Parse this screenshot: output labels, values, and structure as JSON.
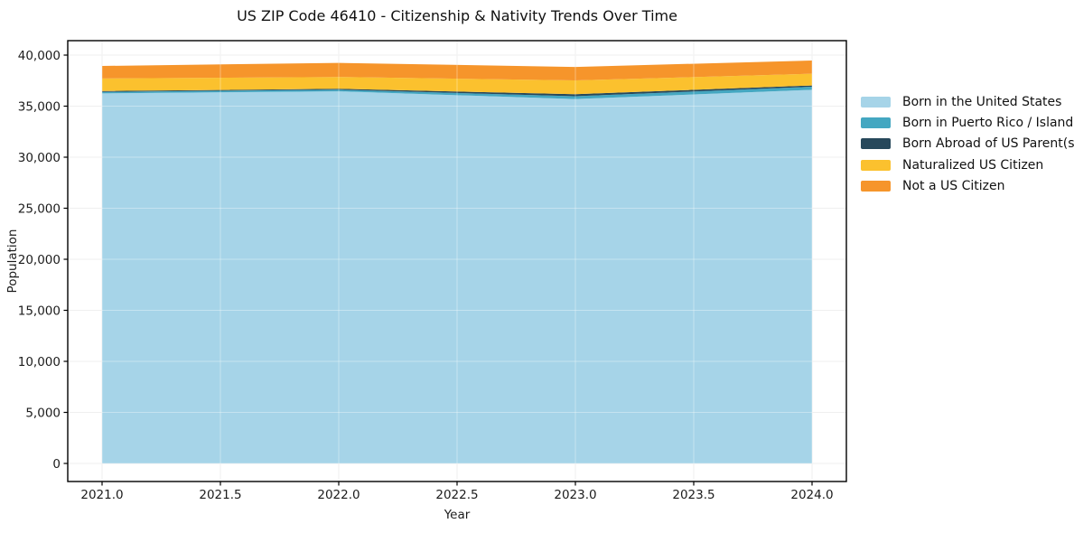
{
  "figure": {
    "title": "US ZIP Code 46410 - Citizenship & Nativity Trends Over Time"
  },
  "chart_data": {
    "type": "area",
    "stacked": true,
    "title": "US ZIP Code 46410 - Citizenship & Nativity Trends Over Time",
    "xlabel": "Year",
    "ylabel": "Population",
    "x": [
      2021,
      2022,
      2023,
      2024
    ],
    "series": [
      {
        "name": "Born in the United States",
        "color": "#A6D4E8",
        "values": [
          36250,
          36450,
          35700,
          36600
        ]
      },
      {
        "name": "Born in Puerto Rico / Islands",
        "color": "#44A7C1",
        "values": [
          150,
          160,
          270,
          300
        ]
      },
      {
        "name": "Born Abroad of US Parent(s)",
        "color": "#27485B",
        "values": [
          80,
          90,
          200,
          130
        ]
      },
      {
        "name": "Naturalized US Citizen",
        "color": "#FBC12E",
        "values": [
          1230,
          1160,
          1350,
          1150
        ]
      },
      {
        "name": "Not a US Citizen",
        "color": "#F6952B",
        "values": [
          1230,
          1380,
          1320,
          1290
        ]
      }
    ],
    "totals": [
      38940,
      39240,
      38840,
      39470
    ],
    "xlim": [
      2021,
      2024
    ],
    "ylim": [
      0,
      40000
    ],
    "x_ticks": [
      {
        "value": 2021.0,
        "label": "2021.0"
      },
      {
        "value": 2021.5,
        "label": "2021.5"
      },
      {
        "value": 2022.0,
        "label": "2022.0"
      },
      {
        "value": 2022.5,
        "label": "2022.5"
      },
      {
        "value": 2023.0,
        "label": "2023.0"
      },
      {
        "value": 2023.5,
        "label": "2023.5"
      },
      {
        "value": 2024.0,
        "label": "2024.0"
      }
    ],
    "y_ticks": [
      {
        "value": 0,
        "label": "0"
      },
      {
        "value": 5000,
        "label": "5,000"
      },
      {
        "value": 10000,
        "label": "10,000"
      },
      {
        "value": 15000,
        "label": "15,000"
      },
      {
        "value": 20000,
        "label": "20,000"
      },
      {
        "value": 25000,
        "label": "25,000"
      },
      {
        "value": 30000,
        "label": "30,000"
      },
      {
        "value": 35000,
        "label": "35,000"
      },
      {
        "value": 40000,
        "label": "40,000"
      }
    ],
    "grid": true,
    "grid_color": "#E6E6E6",
    "axis_color": "#000000",
    "text_color": "#1c1c1c",
    "legend_position": "outside-right"
  }
}
